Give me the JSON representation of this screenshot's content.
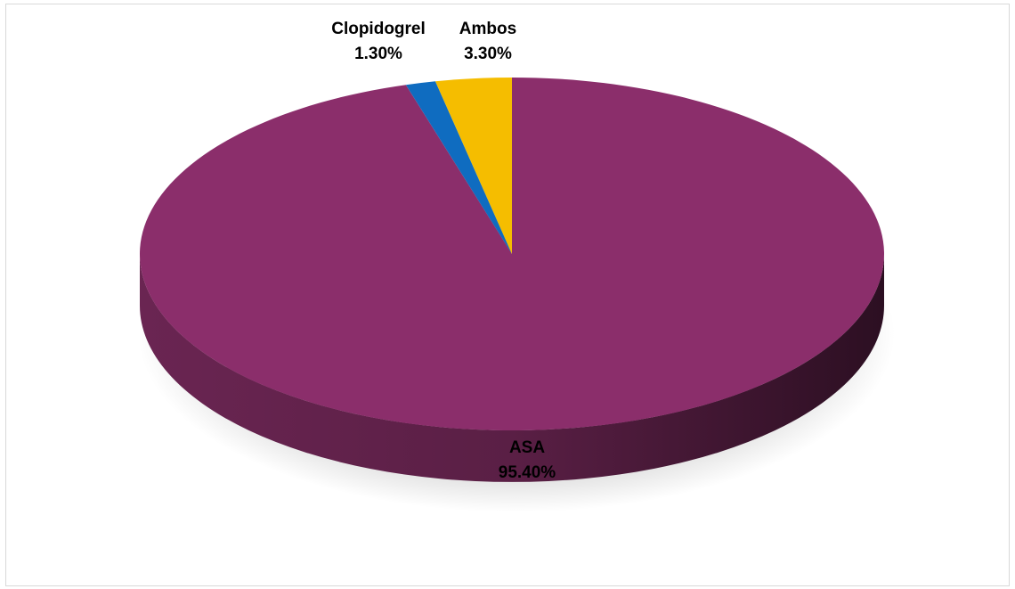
{
  "chart_data": {
    "type": "pie",
    "style": "3d",
    "slices": [
      {
        "category": "ASA",
        "value": 95.4,
        "label": "95.40%",
        "color": "#8b2e6b"
      },
      {
        "category": "Clopidogrel",
        "value": 1.3,
        "label": "1.30%",
        "color": "#0f6cc0"
      },
      {
        "category": "Ambos",
        "value": 3.3,
        "label": "3.30%",
        "color": "#f5bd00"
      }
    ],
    "legend": "none"
  }
}
